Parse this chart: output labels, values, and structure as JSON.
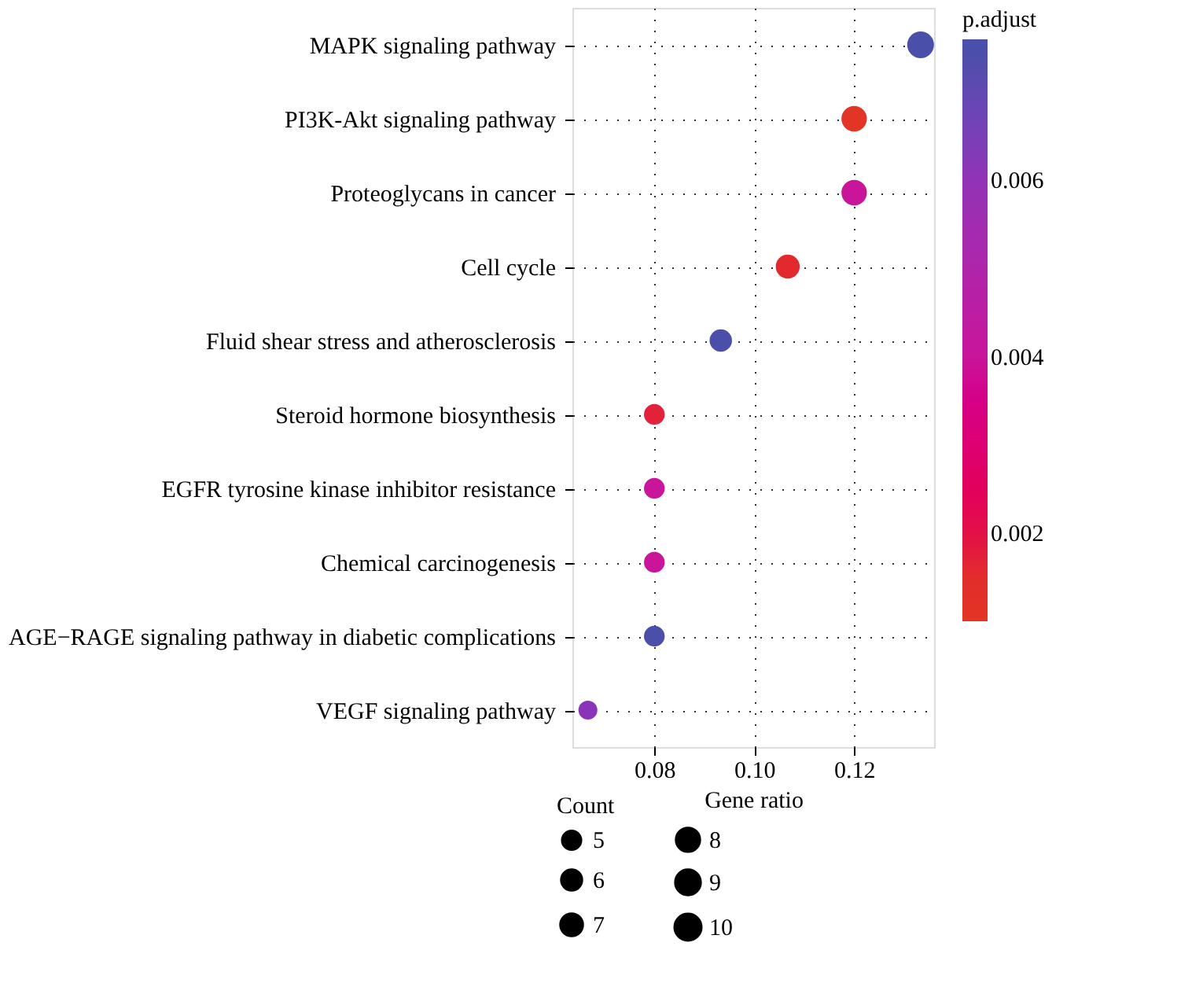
{
  "chart_data": {
    "type": "bubble",
    "orientation": "horizontal",
    "categories": [
      "MAPK signaling pathway",
      "PI3K-Akt signaling pathway",
      "Proteoglycans in cancer",
      "Cell cycle",
      "Fluid shear stress and atherosclerosis",
      "Steroid hormone biosynthesis",
      "EGFR tyrosine kinase inhibitor resistance",
      "Chemical carcinogenesis",
      "AGE−RAGE signaling pathway in diabetic complications",
      "VEGF signaling pathway"
    ],
    "values": [
      0.1333,
      0.12,
      0.12,
      0.1067,
      0.0933,
      0.08,
      0.08,
      0.08,
      0.08,
      0.0667
    ],
    "sizes": [
      10,
      9,
      9,
      8,
      7,
      6,
      6,
      6,
      6,
      5
    ],
    "size_legend": [
      5,
      6,
      7,
      8,
      9,
      10
    ],
    "cvalues": [
      0.0075,
      0.0012,
      0.004,
      0.0016,
      0.0075,
      0.0017,
      0.004,
      0.004,
      0.0075,
      0.0062
    ],
    "clim": [
      0.001,
      0.0076
    ],
    "cticks": [
      0.002,
      0.004,
      0.006
    ],
    "colors": [
      "#4a4fa9",
      "#e23525",
      "#c8159a",
      "#e22a2e",
      "#4b4eaa",
      "#e1223a",
      "#c91896",
      "#c91896",
      "#4c4fab",
      "#8a35b8"
    ],
    "xlim": [
      0.0636,
      0.136
    ],
    "xticks": [
      0.08,
      {
        "value": 0.1,
        "label": "0.10"
      },
      0.12
    ],
    "xlabel": "Gene ratio",
    "legend_title": "Count",
    "clabel": "p.adjust",
    "grid": true
  }
}
